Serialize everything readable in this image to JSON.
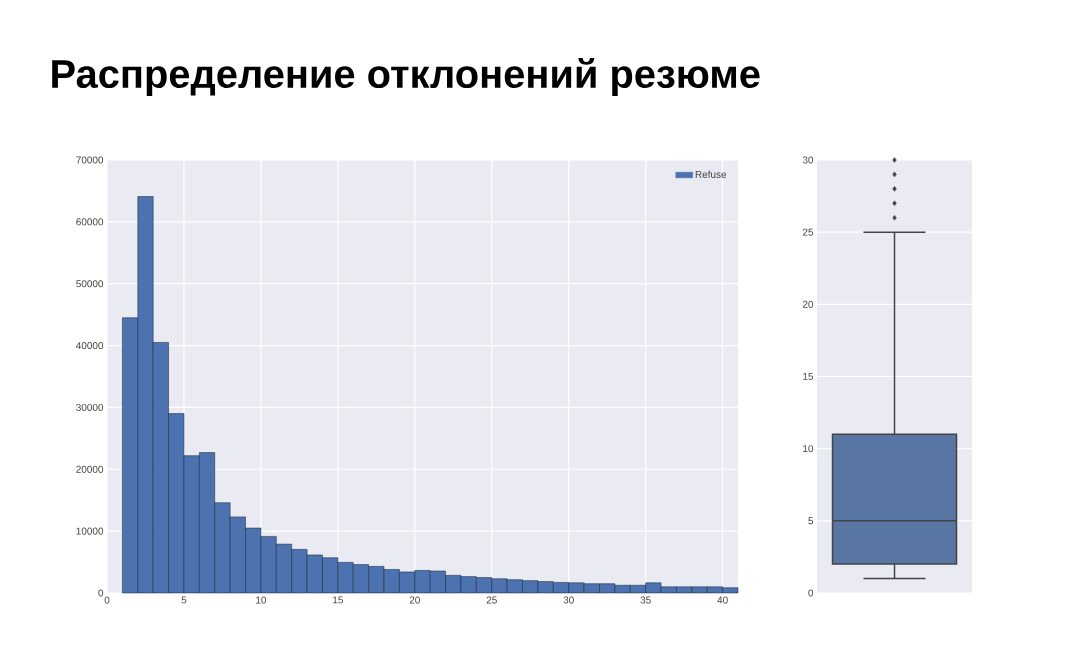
{
  "chart_data": [
    {
      "type": "histogram",
      "title": "Распределение отклонений резюме",
      "bins": [
        1,
        2,
        3,
        4,
        5,
        6,
        7,
        8,
        9,
        10,
        11,
        12,
        13,
        14,
        15,
        16,
        17,
        18,
        19,
        20,
        21,
        22,
        23,
        24,
        25,
        26,
        27,
        28,
        29,
        30,
        31,
        32,
        33,
        34,
        35,
        36,
        37,
        38,
        39,
        40,
        41
      ],
      "series": [
        {
          "name": "Refuse",
          "color": "#4c72b0",
          "values": [
            44500,
            64100,
            40500,
            29000,
            22200,
            22700,
            14600,
            12300,
            10500,
            9150,
            7900,
            7050,
            6150,
            5700,
            4950,
            4600,
            4300,
            3800,
            3400,
            3650,
            3550,
            2850,
            2650,
            2500,
            2300,
            2150,
            2000,
            1850,
            1700,
            1650,
            1500,
            1500,
            1250,
            1250,
            1650,
            1000,
            1000,
            1000,
            1000,
            850
          ]
        }
      ],
      "xlim": [
        0,
        41
      ],
      "xticks": [
        0,
        5,
        10,
        15,
        20,
        25,
        30,
        35,
        40
      ],
      "ylim": [
        0,
        70000
      ],
      "yticks": [
        0,
        10000,
        20000,
        30000,
        40000,
        50000,
        60000,
        70000
      ],
      "grid": true,
      "legend": "top right"
    },
    {
      "type": "box",
      "categories": [
        null
      ],
      "color": "#5875a4",
      "boxes": [
        {
          "low": 1,
          "q1": 2,
          "median": 5,
          "q3": 11,
          "high": 25,
          "outliers": [
            26,
            27,
            28,
            29,
            30
          ]
        }
      ],
      "ylim": [
        0,
        30
      ],
      "yticks": [
        0,
        5,
        10,
        15,
        20,
        25,
        30
      ],
      "grid": "y",
      "tick_labels": "y"
    }
  ]
}
